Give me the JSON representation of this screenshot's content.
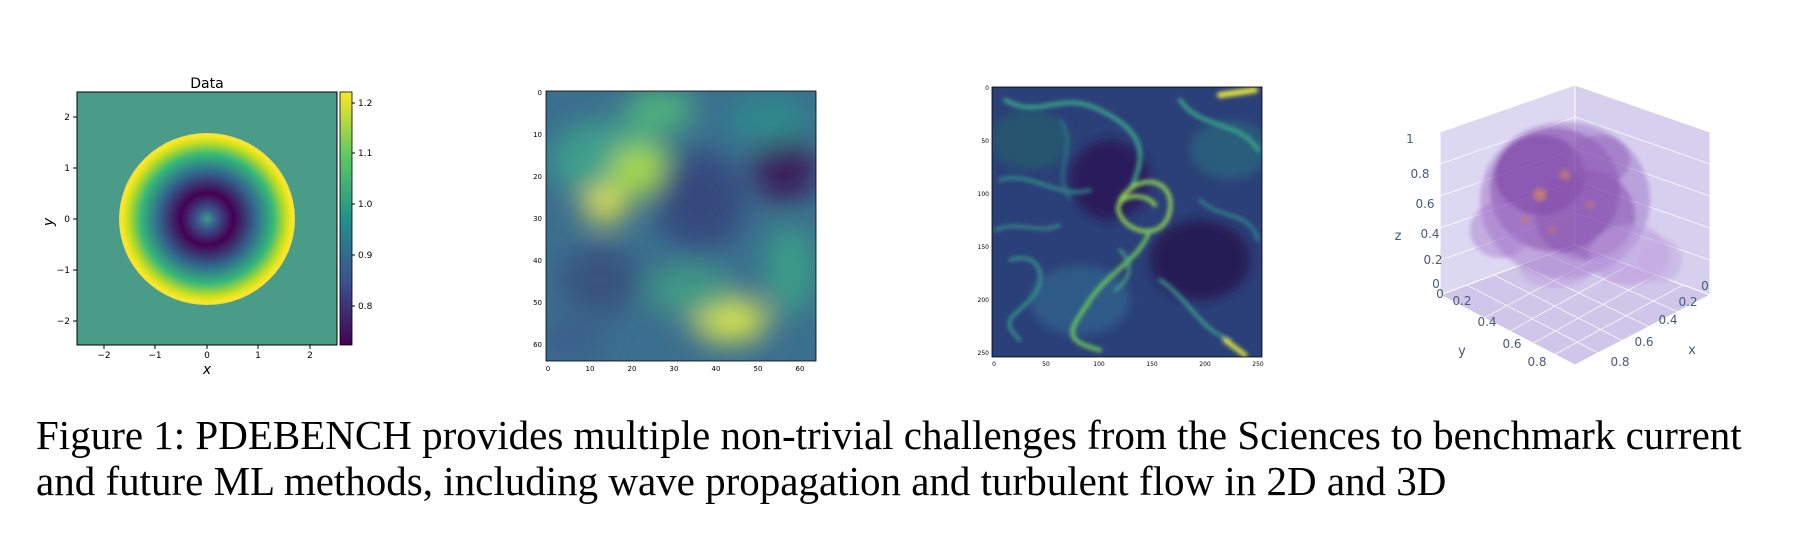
{
  "figure": {
    "panel1": {
      "title": "Data",
      "xlabel": "x",
      "ylabel": "y",
      "xticks": [
        "−2",
        "−1",
        "0",
        "1",
        "2"
      ],
      "yticks": [
        "2",
        "1",
        "0",
        "−1",
        "−2"
      ],
      "colorbar_ticks": [
        "1.2",
        "1.1",
        "1.0",
        "0.9",
        "0.8"
      ]
    },
    "panel2": {
      "xticks": [
        "0",
        "10",
        "20",
        "30",
        "40",
        "50",
        "60"
      ],
      "yticks": [
        "0",
        "10",
        "20",
        "30",
        "40",
        "50",
        "60"
      ]
    },
    "panel3": {
      "xticks": [
        "0",
        "50",
        "100",
        "150",
        "200",
        "250"
      ],
      "yticks": [
        "0",
        "50",
        "100",
        "150",
        "200",
        "250"
      ]
    },
    "panel4": {
      "z_label": "z",
      "y_label": "y",
      "x_label": "x",
      "z_ticks": [
        "1",
        "0.8",
        "0.6",
        "0.4",
        "0.2",
        "0"
      ],
      "y_ticks": [
        "0",
        "0.2",
        "0.4",
        "0.6",
        "0.8"
      ],
      "x_ticks": [
        "0",
        "0.2",
        "0.4",
        "0.6",
        "0.8"
      ]
    }
  },
  "caption": {
    "prefix": "Figure 1:  PDEB",
    "smallcaps": "ENCH",
    "rest": " provides multiple non-trivial challenges from the Sciences to benchmark current and future ML methods, including wave propagation and turbulent flow in 2D and 3D"
  },
  "colors": {
    "viridis_dark": "#440154",
    "viridis_mid": "#21918c",
    "viridis_green": "#5ec962",
    "viridis_yellow": "#fde725",
    "plotly_bg": "#e5e3f5",
    "blob": "#8a4fb0"
  }
}
